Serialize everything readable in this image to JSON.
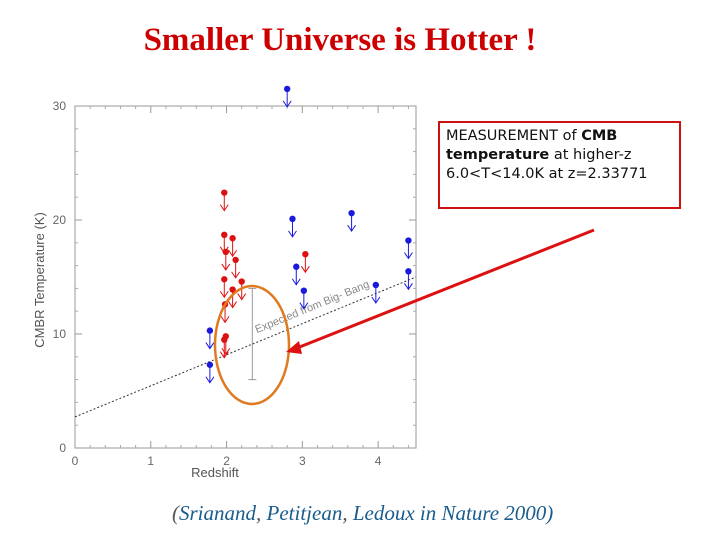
{
  "title": "Smaller Universe is Hotter !",
  "callout": {
    "line1_a": "MEASUREMENT of ",
    "line1_b": "CMB",
    "line2_a": "temperature",
    "line2_b": " at higher-z",
    "line3": "6.0<T<14.0K at z=2.33771"
  },
  "citation": {
    "open": "(",
    "author1": "Srianand",
    "sep1": ", ",
    "author2": "Petitjean",
    "sep2": ", ",
    "author3": "Ledoux",
    "tail": " in Nature 2000)"
  },
  "chart_data": {
    "type": "scatter",
    "xlabel": "Redshift",
    "ylabel": "CMBR Temperature (K)",
    "xlim": [
      0,
      4.5
    ],
    "ylim": [
      0,
      30
    ],
    "xticks": [
      "0",
      "1",
      "2",
      "3",
      "4"
    ],
    "yticks": [
      "0",
      "10",
      "20",
      "30"
    ],
    "line_label": "Expected from Big- Bang",
    "expected_line": {
      "x": [
        0,
        4.5
      ],
      "y": [
        2.73,
        15.0
      ]
    },
    "series": [
      {
        "color": "#dd1111",
        "points": [
          {
            "x": 1.97,
            "y": 22.4
          },
          {
            "x": 1.97,
            "y": 18.7
          },
          {
            "x": 2.08,
            "y": 18.4
          },
          {
            "x": 1.99,
            "y": 17.2
          },
          {
            "x": 2.12,
            "y": 16.5
          },
          {
            "x": 1.97,
            "y": 14.8
          },
          {
            "x": 2.08,
            "y": 13.9
          },
          {
            "x": 1.98,
            "y": 12.6
          },
          {
            "x": 2.2,
            "y": 14.6
          },
          {
            "x": 1.97,
            "y": 9.5
          },
          {
            "x": 1.99,
            "y": 9.8
          },
          {
            "x": 3.04,
            "y": 17.0
          }
        ]
      },
      {
        "color": "#1a1add",
        "points": [
          {
            "x": 2.8,
            "y": 31.5
          },
          {
            "x": 2.87,
            "y": 20.1
          },
          {
            "x": 3.65,
            "y": 20.6
          },
          {
            "x": 2.92,
            "y": 15.9
          },
          {
            "x": 4.4,
            "y": 18.2
          },
          {
            "x": 1.78,
            "y": 10.3
          },
          {
            "x": 1.78,
            "y": 7.3
          },
          {
            "x": 3.02,
            "y": 13.8
          },
          {
            "x": 3.97,
            "y": 14.3
          },
          {
            "x": 4.4,
            "y": 15.5
          }
        ]
      }
    ],
    "detection": {
      "x": 2.34,
      "y_low": 6.0,
      "y_high": 14.0
    },
    "highlight_color": "#e07a20",
    "arrow_color": "#dd1111"
  }
}
